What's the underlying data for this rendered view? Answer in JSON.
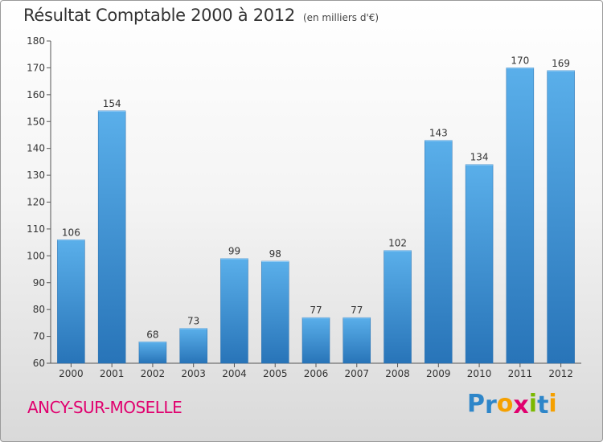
{
  "chart_data": {
    "type": "bar",
    "title": "Résultat Comptable 2000 à 2012",
    "subtitle": "(en milliers d'€)",
    "categories": [
      "2000",
      "2001",
      "2002",
      "2003",
      "2004",
      "2005",
      "2006",
      "2007",
      "2008",
      "2009",
      "2010",
      "2011",
      "2012"
    ],
    "values": [
      106,
      154,
      68,
      73,
      99,
      98,
      77,
      77,
      102,
      143,
      134,
      170,
      169
    ],
    "ylim": [
      60,
      180
    ],
    "yticks": [
      60,
      70,
      80,
      90,
      100,
      110,
      120,
      130,
      140,
      150,
      160,
      170,
      180
    ],
    "xlabel": "",
    "ylabel": "",
    "grid": false,
    "bar_color": "#3d8fd6"
  },
  "footer": {
    "commune": "ANCY-SUR-MOSELLE",
    "logo_letters": [
      "P",
      "r",
      "o",
      "x",
      "i",
      "t",
      "i"
    ],
    "logo_colors": [
      "#2e86c9",
      "#2e86c9",
      "#f5a000",
      "#e0006e",
      "#7bb800",
      "#2e86c9",
      "#f5a000"
    ]
  },
  "colors": {
    "commune_text": "#e0006e",
    "title_text": "#333333"
  }
}
